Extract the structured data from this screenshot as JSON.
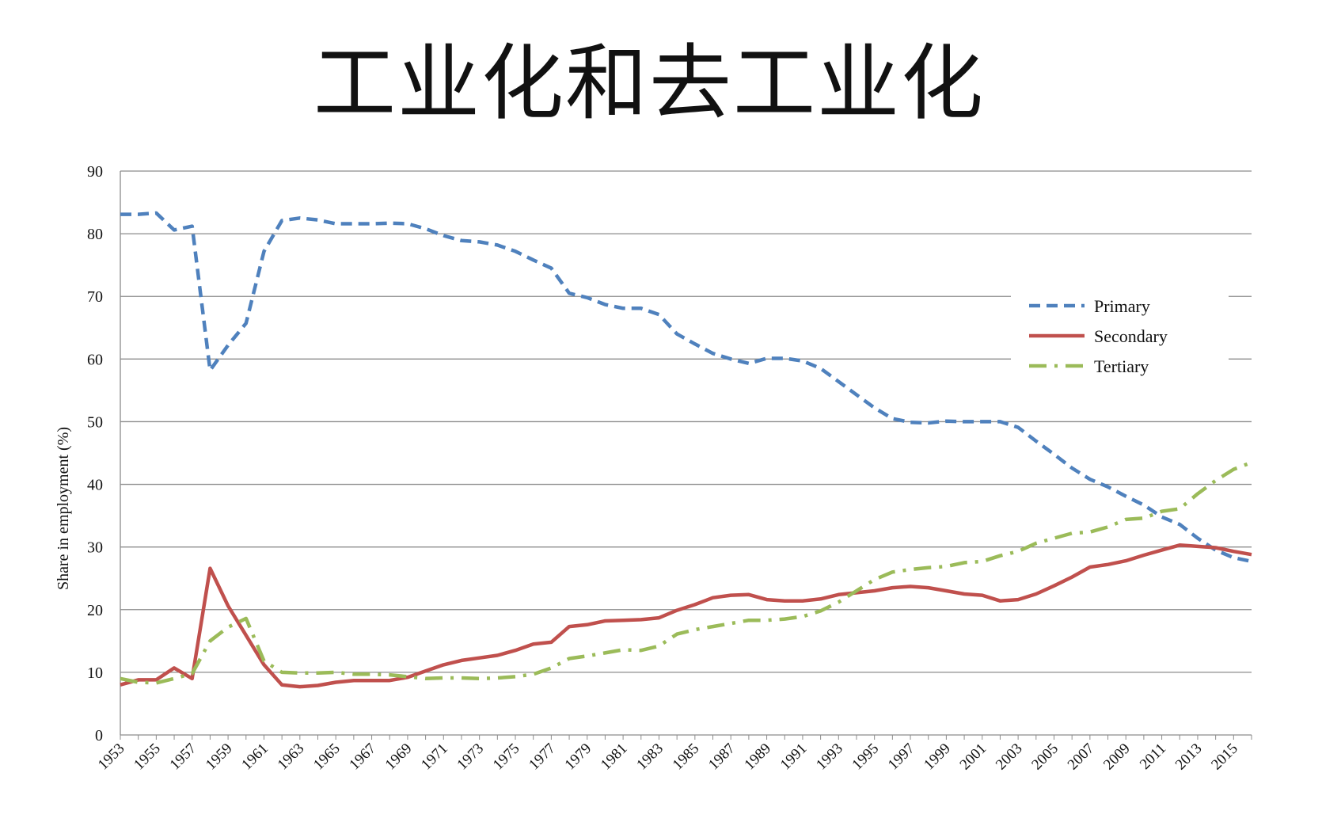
{
  "title": "工业化和去工业化",
  "chart_data": {
    "type": "line",
    "title": "工业化和去工业化",
    "xlabel": "",
    "ylabel": "Share in employment (%)",
    "ylim": [
      0,
      90
    ],
    "yticks": [
      "0",
      "10",
      "20",
      "30",
      "40",
      "50",
      "60",
      "70",
      "80",
      "90"
    ],
    "x": [
      1953,
      1954,
      1955,
      1956,
      1957,
      1958,
      1959,
      1960,
      1961,
      1962,
      1963,
      1964,
      1965,
      1966,
      1967,
      1968,
      1969,
      1970,
      1971,
      1972,
      1973,
      1974,
      1975,
      1976,
      1977,
      1978,
      1979,
      1980,
      1981,
      1982,
      1983,
      1984,
      1985,
      1986,
      1987,
      1988,
      1989,
      1990,
      1991,
      1992,
      1993,
      1994,
      1995,
      1996,
      1997,
      1998,
      1999,
      2000,
      2001,
      2002,
      2003,
      2004,
      2005,
      2006,
      2007,
      2008,
      2009,
      2010,
      2011,
      2012,
      2013,
      2014,
      2015,
      2016
    ],
    "xtick_labels": [
      "1953",
      "1955",
      "1957",
      "1959",
      "1961",
      "1963",
      "1965",
      "1967",
      "1969",
      "1971",
      "1973",
      "1975",
      "1977",
      "1979",
      "1981",
      "1983",
      "1985",
      "1987",
      "1989",
      "1991",
      "1993",
      "1995",
      "1997",
      "1999",
      "2001",
      "2003",
      "2005",
      "2007",
      "2009",
      "2011",
      "2013",
      "2015"
    ],
    "grid": "horizontal",
    "legend_position": "right",
    "series": [
      {
        "name": "Primary",
        "color": "#4f81bd",
        "dash": "dashed",
        "values": [
          83.1,
          83.1,
          83.3,
          80.6,
          81.2,
          58.2,
          62.2,
          65.7,
          77.2,
          82.1,
          82.5,
          82.2,
          81.6,
          81.6,
          81.6,
          81.7,
          81.6,
          80.8,
          79.7,
          78.9,
          78.7,
          78.2,
          77.2,
          75.8,
          74.5,
          70.5,
          69.8,
          68.7,
          68.1,
          68.1,
          67.1,
          64.0,
          62.4,
          60.9,
          60.0,
          59.3,
          60.1,
          60.1,
          59.7,
          58.5,
          56.4,
          54.3,
          52.2,
          50.5,
          49.9,
          49.8,
          50.1,
          50.0,
          50.0,
          50.0,
          49.1,
          46.9,
          44.8,
          42.6,
          40.8,
          39.6,
          38.1,
          36.7,
          34.8,
          33.6,
          31.4,
          29.5,
          28.3,
          27.7
        ]
      },
      {
        "name": "Secondary",
        "color": "#c0504d",
        "dash": "solid",
        "values": [
          8.0,
          8.8,
          8.8,
          10.7,
          9.0,
          26.6,
          20.6,
          15.9,
          11.2,
          8.0,
          7.7,
          7.9,
          8.4,
          8.7,
          8.7,
          8.7,
          9.2,
          10.2,
          11.2,
          11.9,
          12.3,
          12.7,
          13.5,
          14.5,
          14.8,
          17.3,
          17.6,
          18.2,
          18.3,
          18.4,
          18.7,
          19.9,
          20.8,
          21.9,
          22.3,
          22.4,
          21.6,
          21.4,
          21.4,
          21.7,
          22.4,
          22.7,
          23.0,
          23.5,
          23.7,
          23.5,
          23.0,
          22.5,
          22.3,
          21.4,
          21.6,
          22.5,
          23.8,
          25.2,
          26.8,
          27.2,
          27.8,
          28.7,
          29.5,
          30.3,
          30.1,
          29.9,
          29.3,
          28.8
        ]
      },
      {
        "name": "Tertiary",
        "color": "#9bbb59",
        "dash": "dash-dot",
        "values": [
          9.0,
          8.4,
          8.3,
          9.0,
          9.8,
          15.0,
          17.2,
          18.6,
          11.8,
          10.0,
          9.9,
          9.9,
          10.0,
          9.7,
          9.7,
          9.6,
          9.3,
          9.0,
          9.1,
          9.1,
          9.0,
          9.1,
          9.3,
          9.7,
          10.7,
          12.2,
          12.6,
          13.1,
          13.6,
          13.5,
          14.2,
          16.1,
          16.8,
          17.3,
          17.8,
          18.3,
          18.3,
          18.5,
          18.9,
          19.8,
          21.2,
          23.0,
          24.8,
          26.0,
          26.4,
          26.7,
          26.9,
          27.5,
          27.7,
          28.6,
          29.3,
          30.6,
          31.4,
          32.2,
          32.4,
          33.2,
          34.4,
          34.6,
          35.7,
          36.1,
          38.5,
          40.6,
          42.4,
          43.5
        ]
      }
    ]
  }
}
